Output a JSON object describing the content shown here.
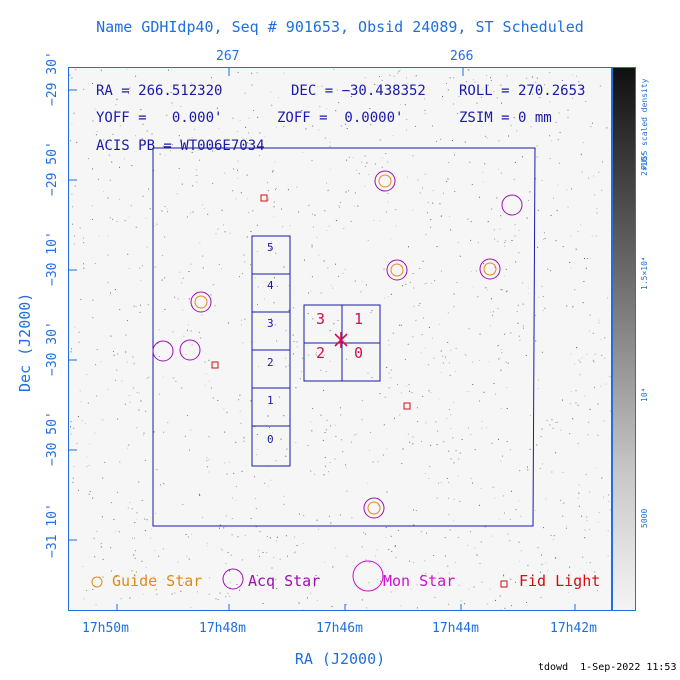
{
  "title": "Name GDHIdp40, Seq # 901653, Obsid 24089, ST Scheduled",
  "params": {
    "ra": "RA = 266.512320",
    "dec": "DEC = −30.438352",
    "roll": "ROLL = 270.2653",
    "yoff": "YOFF =   0.000'",
    "zoff": "ZOFF =  0.0000'",
    "zsim": "ZSIM = 0 mm",
    "acis": "ACIS PB = WT006E7034"
  },
  "axes": {
    "xlabel": "RA (J2000)",
    "ylabel": "Dec (J2000)",
    "x_ticks_bottom": [
      "17h50m",
      "17h48m",
      "17h46m",
      "17h44m",
      "17h42m"
    ],
    "x_ticks_top": [
      "267",
      "266"
    ],
    "y_ticks": [
      "−29 30'",
      "−29 50'",
      "−30 10'",
      "−30 30'",
      "−30 50'",
      "−31 10'"
    ]
  },
  "colorbar": {
    "label": "PUSS scaled density",
    "ticks": [
      "2×10⁴",
      "1.5×10⁴",
      "10⁴",
      "5000"
    ]
  },
  "ccds": {
    "spectroscopy": [
      "5",
      "4",
      "3",
      "2",
      "1",
      "0"
    ],
    "imaging": [
      "3",
      "1",
      "2",
      "0"
    ]
  },
  "legend": {
    "guide": "Guide Star",
    "acq": "Acq Star",
    "mon": "Mon Star",
    "fid": "Fid Light"
  },
  "colors": {
    "axis": "#1f6fe0",
    "ccd": "#1a1aa8",
    "guide": "#e08a1a",
    "acq": "#9a10b0",
    "mon": "#d010d0",
    "fid": "#d01010",
    "pointing": "#d01050"
  },
  "footer": "tdowd  1-Sep-2022 11:53"
}
